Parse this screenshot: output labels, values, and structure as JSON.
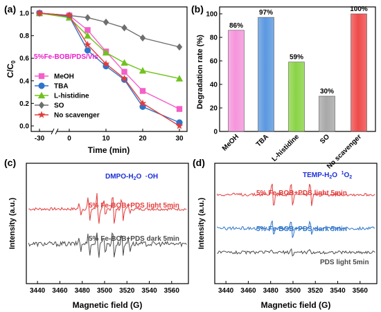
{
  "chart_data": [
    {
      "panel": "(a)",
      "type": "line",
      "annotation": "5%Fe-BOB/PDS/Vis",
      "annotation_color": "#e91ec8",
      "xlabel": "Time (min)",
      "ylabel_main": "C/C",
      "ylabel_sub": "0",
      "xlim": [
        -30,
        30
      ],
      "ylim": [
        0,
        1.0
      ],
      "xticks": [
        "-30",
        "0",
        "10",
        "20",
        "30"
      ],
      "yticks": [
        "0.0",
        "0.2",
        "0.4",
        "0.6",
        "0.8",
        "1.0"
      ],
      "x": [
        -30,
        0,
        5,
        10,
        15,
        20,
        30
      ],
      "legend_position": "lower-left",
      "series": [
        {
          "name": "MeOH",
          "color": "#f45fc8",
          "marker": "square",
          "values": [
            1.0,
            0.98,
            0.85,
            0.66,
            0.48,
            0.31,
            0.15
          ]
        },
        {
          "name": "TBA",
          "color": "#2e74c9",
          "marker": "circle",
          "values": [
            1.0,
            0.97,
            0.67,
            0.53,
            0.41,
            0.17,
            0.03
          ]
        },
        {
          "name": "L-histidine",
          "color": "#70c21c",
          "marker": "triangle",
          "values": [
            1.0,
            0.96,
            0.8,
            0.65,
            0.56,
            0.49,
            0.42
          ]
        },
        {
          "name": "SO",
          "color": "#6e6e6e",
          "marker": "diamond",
          "values": [
            1.0,
            0.98,
            0.96,
            0.92,
            0.87,
            0.78,
            0.7
          ]
        },
        {
          "name": "No scavenger",
          "color": "#e33b3b",
          "marker": "star",
          "values": [
            1.0,
            0.98,
            0.72,
            0.55,
            0.42,
            0.2,
            0.0
          ]
        }
      ]
    },
    {
      "panel": "(b)",
      "type": "bar",
      "ylabel": "Degradation rate (%)",
      "ylim": [
        0,
        100
      ],
      "yticks": [
        "0",
        "20",
        "40",
        "60",
        "80",
        "100"
      ],
      "categories": [
        "MeOH",
        "TBA",
        "L-histidine",
        "SO",
        "No scavenger"
      ],
      "values": [
        86,
        97,
        59,
        30,
        100
      ],
      "labels": [
        "86%",
        "97%",
        "59%",
        "30%",
        "100%"
      ],
      "colors": [
        "#f595dc",
        "#5b98e0",
        "#8ad446",
        "#a8a8a8",
        "#ef4b4b"
      ]
    },
    {
      "panel": "(c)",
      "type": "line",
      "title": "DMPO-H₂O  ·OH",
      "title_main": "DMPO-H",
      "title_sub": "2",
      "title_tail": "O  ·OH",
      "title_color": "#1b2fd6",
      "xlabel": "Magnetic field (G)",
      "ylabel": "Intensity (a.u.)",
      "xlim": [
        3430,
        3575
      ],
      "xticks": [
        "3440",
        "3460",
        "3480",
        "3500",
        "3520",
        "3540",
        "3560"
      ],
      "series": [
        {
          "name": "5% Fe-BOB+PDS light 5min",
          "color": "#e33b3b",
          "baseline": 0.62,
          "noise": 0.012,
          "peaks": [
            [
              3478,
              0.05
            ],
            [
              3486,
              0.11
            ],
            [
              3494,
              0.16
            ],
            [
              3500,
              0.08
            ],
            [
              3508,
              0.16
            ],
            [
              3516,
              0.11
            ],
            [
              3522,
              0.05
            ]
          ]
        },
        {
          "name": "5% Fe-BOB+PDS dark 5min",
          "color": "#4a4a4a",
          "baseline": 0.33,
          "noise": 0.02,
          "peaks": [
            [
              3478,
              0.06
            ],
            [
              3486,
              0.1
            ],
            [
              3494,
              0.13
            ],
            [
              3500,
              0.08
            ],
            [
              3508,
              0.13
            ],
            [
              3516,
              0.1
            ],
            [
              3522,
              0.06
            ]
          ]
        }
      ]
    },
    {
      "panel": "(d)",
      "type": "line",
      "title": "TEMP-H₂O  ¹O₂",
      "title_main": "TEMP-H",
      "title_sub": "2",
      "title_tail": "O  ",
      "title_sup": "1",
      "title_tail2": "O",
      "title_sub2": "2",
      "title_color": "#1b2fd6",
      "xlabel": "Magnetic field (G)",
      "ylabel": "Intensity (a.u.)",
      "xlim": [
        3430,
        3575
      ],
      "xticks": [
        "3440",
        "3460",
        "3480",
        "3500",
        "3520",
        "3540",
        "3560"
      ],
      "series": [
        {
          "name": "5% Fe-BOB+PDS light 5min",
          "color": "#e33b3b",
          "baseline": 0.74,
          "noise": 0.012,
          "peaks": [
            [
              3482,
              0.13
            ],
            [
              3499,
              0.13
            ],
            [
              3516,
              0.13
            ]
          ]
        },
        {
          "name": "5% Fe-BOB+PDS dark 5min",
          "color": "#2e74c9",
          "baseline": 0.46,
          "noise": 0.013,
          "peaks": [
            [
              3482,
              0.08
            ],
            [
              3499,
              0.09
            ],
            [
              3516,
              0.08
            ]
          ]
        },
        {
          "name": "PDS light 5min",
          "color": "#4a4a4a",
          "baseline": 0.26,
          "noise": 0.013,
          "peaks": [
            [
              3482,
              0.03
            ],
            [
              3499,
              0.03
            ],
            [
              3516,
              0.03
            ]
          ]
        }
      ]
    }
  ]
}
